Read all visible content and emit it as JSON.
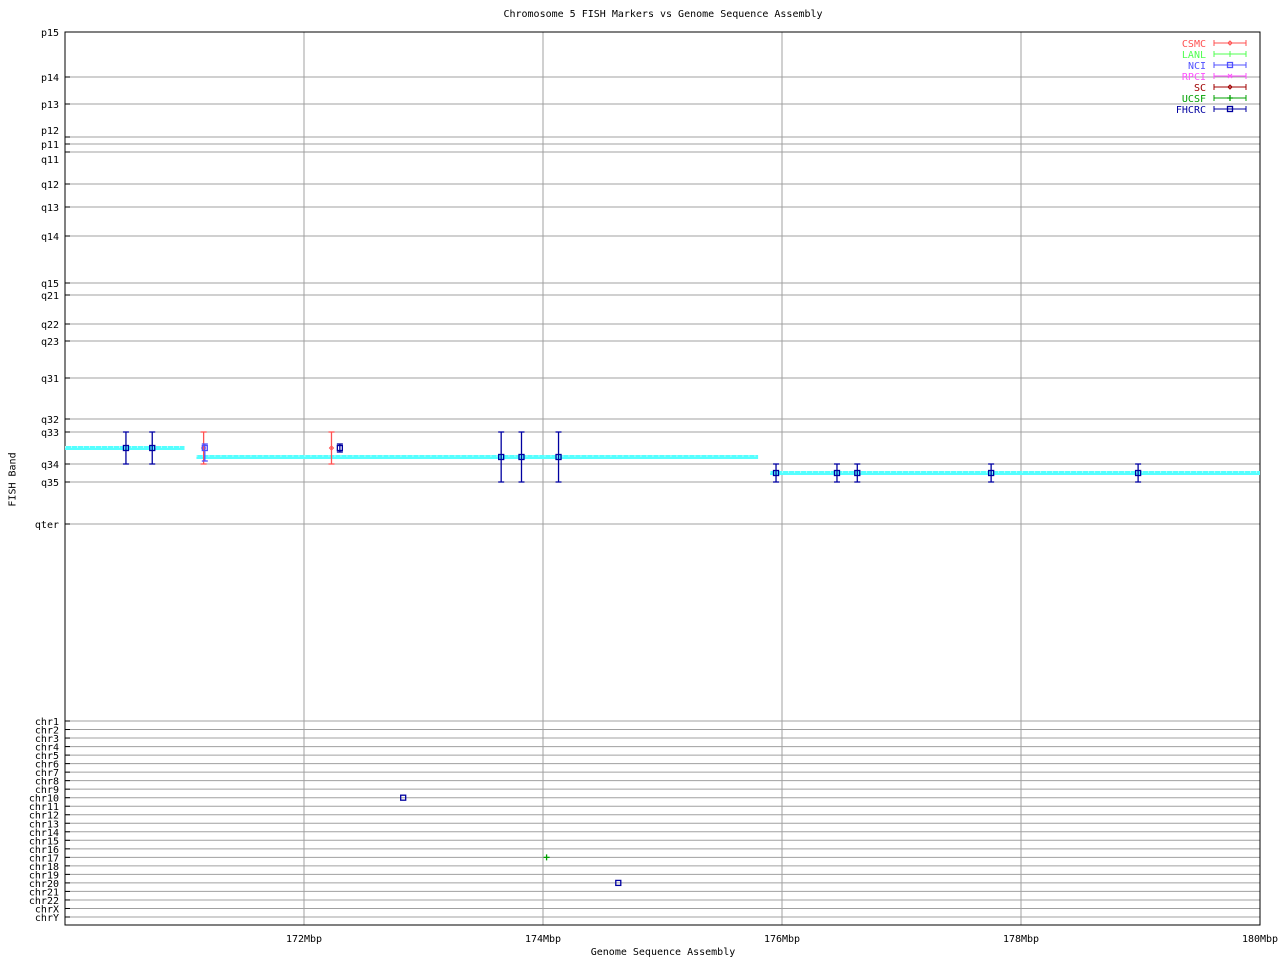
{
  "chart_data": {
    "type": "scatter",
    "title": "Chromosome 5 FISH Markers vs Genome Sequence Assembly",
    "xlabel": "Genome Sequence Assembly",
    "ylabel": "FISH Band",
    "xlim": [
      170,
      180
    ],
    "x_ticks": [
      {
        "value": 172,
        "label": "172Mbp"
      },
      {
        "value": 174,
        "label": "174Mbp"
      },
      {
        "value": 176,
        "label": "176Mbp"
      },
      {
        "value": 178,
        "label": "178Mbp"
      },
      {
        "value": 180,
        "label": "180Mbp"
      }
    ],
    "y_bands": [
      "p15",
      "p14",
      "p13",
      "p12",
      "p11",
      "q11",
      "q12",
      "q13",
      "q14",
      "q15",
      "q21",
      "q22",
      "q23",
      "q31",
      "q32",
      "q33",
      "q34",
      "q35",
      "qter"
    ],
    "y_chromosomes": [
      "chr1",
      "chr2",
      "chr3",
      "chr4",
      "chr5",
      "chr6",
      "chr7",
      "chr8",
      "chr9",
      "chr10",
      "chr11",
      "chr12",
      "chr13",
      "chr14",
      "chr15",
      "chr16",
      "chr17",
      "chr18",
      "chr19",
      "chr20",
      "chr21",
      "chr22",
      "chrX",
      "chrY"
    ],
    "grid": true,
    "legend_position": "top-right",
    "legend": [
      {
        "name": "CSMC",
        "color": "#ff5050",
        "marker": "diamond"
      },
      {
        "name": "LANL",
        "color": "#50ff50",
        "marker": "tick"
      },
      {
        "name": "NCI",
        "color": "#5050ff",
        "marker": "square"
      },
      {
        "name": "RPCI",
        "color": "#ff50ff",
        "marker": "x"
      },
      {
        "name": "SC",
        "color": "#a00000",
        "marker": "diamond"
      },
      {
        "name": "UCSF",
        "color": "#00a000",
        "marker": "plus"
      },
      {
        "name": "FHCRC",
        "color": "#0000a0",
        "marker": "square"
      }
    ],
    "sequence_segments": {
      "color": "#55ffff",
      "segments": [
        {
          "x_start": 170.0,
          "x_end": 171.0,
          "band_from": "q33",
          "band_to": "q34",
          "pos": 0.5
        },
        {
          "x_start": 171.1,
          "x_end": 175.8,
          "band_from": "q33",
          "band_to": "q34",
          "pos": 0.78
        },
        {
          "x_start": 175.9,
          "x_end": 180.0,
          "band_from": "q34",
          "band_to": "q35",
          "pos": 0.5
        }
      ]
    },
    "points": [
      {
        "lab": "FHCRC",
        "x": 170.51,
        "band": "q33-q34",
        "err_from": "q33",
        "err_to": "q34"
      },
      {
        "lab": "FHCRC",
        "x": 170.73,
        "band": "q33-q34",
        "err_from": "q33",
        "err_to": "q34"
      },
      {
        "lab": "CSMC",
        "x": 171.16,
        "band": "q33-q34",
        "err_from": "q33",
        "err_to": "q34"
      },
      {
        "lab": "NCI",
        "x": 171.17,
        "band": "q33-q34",
        "err_from": "q33",
        "err_to": "q34",
        "narrow": true
      },
      {
        "lab": "CSMC",
        "x": 172.23,
        "band": "q33-q34",
        "err_from": "q33",
        "err_to": "q34"
      },
      {
        "lab": "FHCRC",
        "x": 172.3,
        "band": "q33-q34",
        "err_from": "q33",
        "err_to": "q34",
        "narrow": true
      },
      {
        "lab": "FHCRC",
        "x": 173.65,
        "band": "q33-q35",
        "err_from": "q33",
        "err_to": "q35"
      },
      {
        "lab": "FHCRC",
        "x": 173.82,
        "band": "q33-q35",
        "err_from": "q33",
        "err_to": "q35"
      },
      {
        "lab": "FHCRC",
        "x": 174.13,
        "band": "q33-q35",
        "err_from": "q33",
        "err_to": "q35"
      },
      {
        "lab": "FHCRC",
        "x": 175.95,
        "band": "q34-q35",
        "err_from": "q34",
        "err_to": "q35"
      },
      {
        "lab": "FHCRC",
        "x": 176.46,
        "band": "q34-q35",
        "err_from": "q34",
        "err_to": "q35"
      },
      {
        "lab": "FHCRC",
        "x": 176.63,
        "band": "q34-q35",
        "err_from": "q34",
        "err_to": "q35"
      },
      {
        "lab": "FHCRC",
        "x": 177.75,
        "band": "q34-q35",
        "err_from": "q34",
        "err_to": "q35"
      },
      {
        "lab": "FHCRC",
        "x": 178.98,
        "band": "q34-q35",
        "err_from": "q34",
        "err_to": "q35"
      },
      {
        "lab": "FHCRC",
        "x": 172.83,
        "chromosome": "chr10"
      },
      {
        "lab": "UCSF",
        "x": 174.03,
        "chromosome": "chr17"
      },
      {
        "lab": "FHCRC",
        "x": 174.63,
        "chromosome": "chr20"
      }
    ]
  }
}
